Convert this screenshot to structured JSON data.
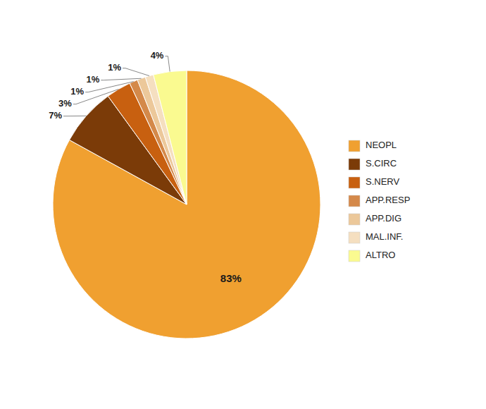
{
  "chart_data": {
    "type": "pie",
    "categories": [
      "NEOPL",
      "S.CIRC",
      "S.NERV",
      "APP.RESP",
      "APP.DIG",
      "MAL.INF.",
      "ALTRO"
    ],
    "values": [
      83,
      7,
      3,
      1,
      1,
      1,
      4
    ],
    "value_labels": [
      "83%",
      "7%",
      "3%",
      "1%",
      "1%",
      "1%",
      "4%"
    ],
    "colors": [
      "#F0A030",
      "#7B3B08",
      "#C86010",
      "#D4894A",
      "#ECC89A",
      "#F5DFC0",
      "#FAFA90"
    ],
    "data_labels": true,
    "legend": "right"
  }
}
